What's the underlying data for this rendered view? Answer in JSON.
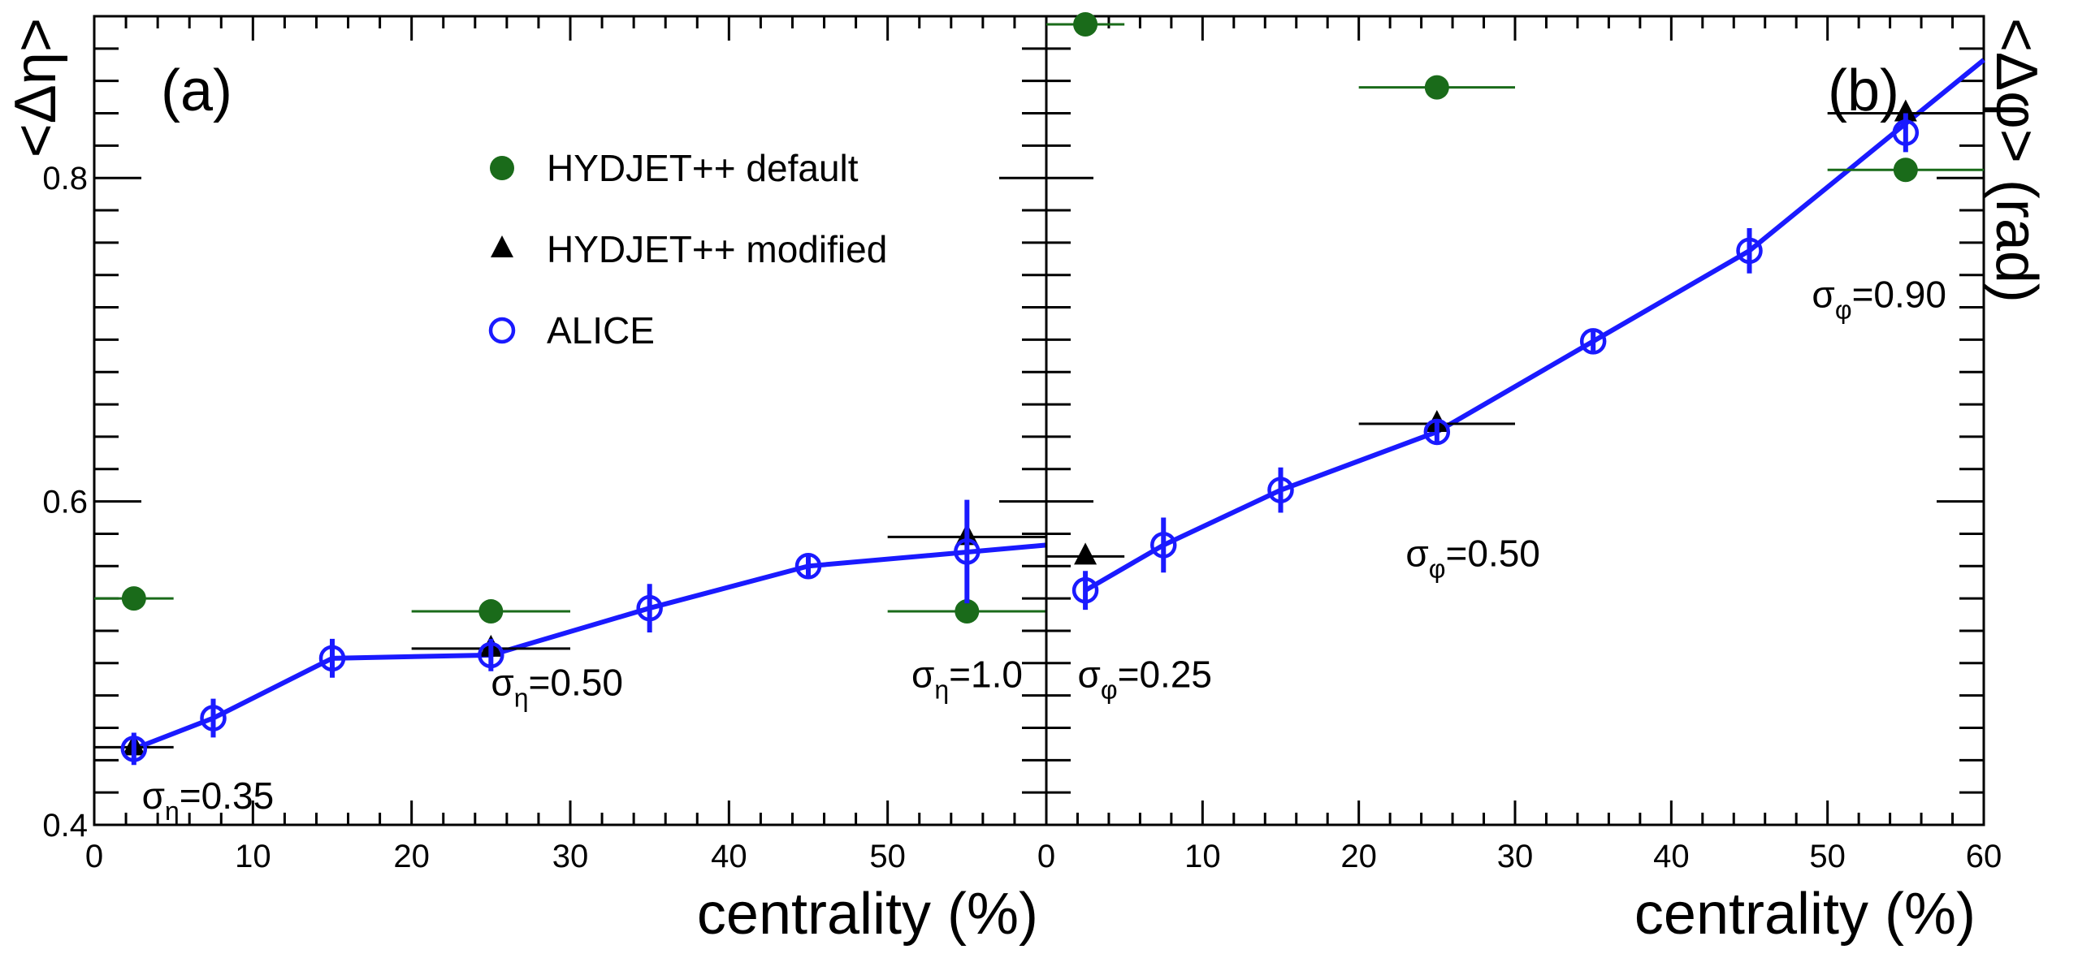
{
  "chart_data": [
    {
      "type": "scatter",
      "panel_label": "(a)",
      "ylabel": "<Δη>",
      "xlabel": "centrality (%)",
      "xlim": [
        0,
        60
      ],
      "ylim": [
        0.4,
        0.9
      ],
      "x_ticks": [
        "0",
        "10",
        "20",
        "30",
        "40",
        "50"
      ],
      "y_ticks": [
        "0.4",
        "0.6",
        "0.8"
      ],
      "legend": {
        "placement": "top-center",
        "entries": [
          "HYDJET++ default",
          "HYDJET++ modified",
          "ALICE"
        ]
      },
      "series": [
        {
          "name": "HYDJET++ default",
          "marker": "filled-circle",
          "color": "#1a6b1a",
          "points": [
            {
              "x": 2.5,
              "y": 0.54,
              "xerr": 2.5
            },
            {
              "x": 25,
              "y": 0.532,
              "xerr": 5
            },
            {
              "x": 55,
              "y": 0.532,
              "xerr": 5
            }
          ]
        },
        {
          "name": "HYDJET++ modified",
          "marker": "filled-triangle",
          "color": "#000000",
          "points": [
            {
              "x": 2.5,
              "y": 0.448,
              "xerr": 2.5
            },
            {
              "x": 25,
              "y": 0.509,
              "xerr": 5
            },
            {
              "x": 55,
              "y": 0.578,
              "xerr": 5
            }
          ]
        },
        {
          "name": "ALICE",
          "marker": "open-circle",
          "color": "#1a1aff",
          "points": [
            {
              "x": 2.5,
              "y": 0.447,
              "yerr": 0.01
            },
            {
              "x": 7.5,
              "y": 0.466,
              "yerr": 0.012
            },
            {
              "x": 15,
              "y": 0.503,
              "yerr": 0.012
            },
            {
              "x": 25,
              "y": 0.505,
              "yerr": 0.01
            },
            {
              "x": 35,
              "y": 0.534,
              "yerr": 0.015
            },
            {
              "x": 45,
              "y": 0.56,
              "yerr": 0.006
            },
            {
              "x": 55,
              "y": 0.569,
              "yerr": 0.032
            }
          ],
          "fit_line": [
            {
              "x": 2.5,
              "y": 0.447
            },
            {
              "x": 7.5,
              "y": 0.466
            },
            {
              "x": 15,
              "y": 0.503
            },
            {
              "x": 25,
              "y": 0.505
            },
            {
              "x": 35,
              "y": 0.534
            },
            {
              "x": 45,
              "y": 0.56
            },
            {
              "x": 60,
              "y": 0.573
            }
          ]
        }
      ],
      "annotations": [
        {
          "symbol": "σ",
          "sub": "η",
          "text": "=0.35",
          "x": 3,
          "y": 0.41
        },
        {
          "symbol": "σ",
          "sub": "η",
          "text": "=0.50",
          "x": 25,
          "y": 0.48
        },
        {
          "symbol": "σ",
          "sub": "η",
          "text": "=1.0",
          "x": 51.5,
          "y": 0.485
        }
      ]
    },
    {
      "type": "scatter",
      "panel_label": "(b)",
      "ylabel": "<Δφ> (rad)",
      "xlabel": "centrality (%)",
      "xlim": [
        0,
        60
      ],
      "ylim": [
        0.4,
        0.9
      ],
      "x_ticks": [
        "0",
        "10",
        "20",
        "30",
        "40",
        "50",
        "60"
      ],
      "series": [
        {
          "name": "HYDJET++ default",
          "marker": "filled-circle",
          "color": "#1a6b1a",
          "points": [
            {
              "x": 2.5,
              "y": 0.895,
              "xerr": 2.5
            },
            {
              "x": 25,
              "y": 0.856,
              "xerr": 5
            },
            {
              "x": 55,
              "y": 0.805,
              "xerr": 5
            }
          ]
        },
        {
          "name": "HYDJET++ modified",
          "marker": "filled-triangle",
          "color": "#000000",
          "points": [
            {
              "x": 2.5,
              "y": 0.566,
              "xerr": 2.5
            },
            {
              "x": 25,
              "y": 0.648,
              "xerr": 5
            },
            {
              "x": 55,
              "y": 0.84,
              "xerr": 5
            }
          ]
        },
        {
          "name": "ALICE",
          "marker": "open-circle",
          "color": "#1a1aff",
          "points": [
            {
              "x": 2.5,
              "y": 0.545,
              "yerr": 0.012
            },
            {
              "x": 7.5,
              "y": 0.573,
              "yerr": 0.017
            },
            {
              "x": 15,
              "y": 0.607,
              "yerr": 0.014
            },
            {
              "x": 25,
              "y": 0.643,
              "yerr": 0.008
            },
            {
              "x": 35,
              "y": 0.699,
              "yerr": 0.006
            },
            {
              "x": 45,
              "y": 0.755,
              "yerr": 0.014
            },
            {
              "x": 55,
              "y": 0.828,
              "yerr": 0.012
            }
          ],
          "fit_line": [
            {
              "x": 2.5,
              "y": 0.545
            },
            {
              "x": 7.5,
              "y": 0.573
            },
            {
              "x": 15,
              "y": 0.607
            },
            {
              "x": 25,
              "y": 0.643
            },
            {
              "x": 35,
              "y": 0.699
            },
            {
              "x": 45,
              "y": 0.755
            },
            {
              "x": 60,
              "y": 0.873
            }
          ]
        }
      ],
      "annotations": [
        {
          "symbol": "σ",
          "sub": "φ",
          "text": "=0.25",
          "x": 2,
          "y": 0.485
        },
        {
          "symbol": "σ",
          "sub": "φ",
          "text": "=0.50",
          "x": 23,
          "y": 0.56
        },
        {
          "symbol": "σ",
          "sub": "φ",
          "text": "=0.90",
          "x": 49,
          "y": 0.72
        }
      ]
    }
  ]
}
